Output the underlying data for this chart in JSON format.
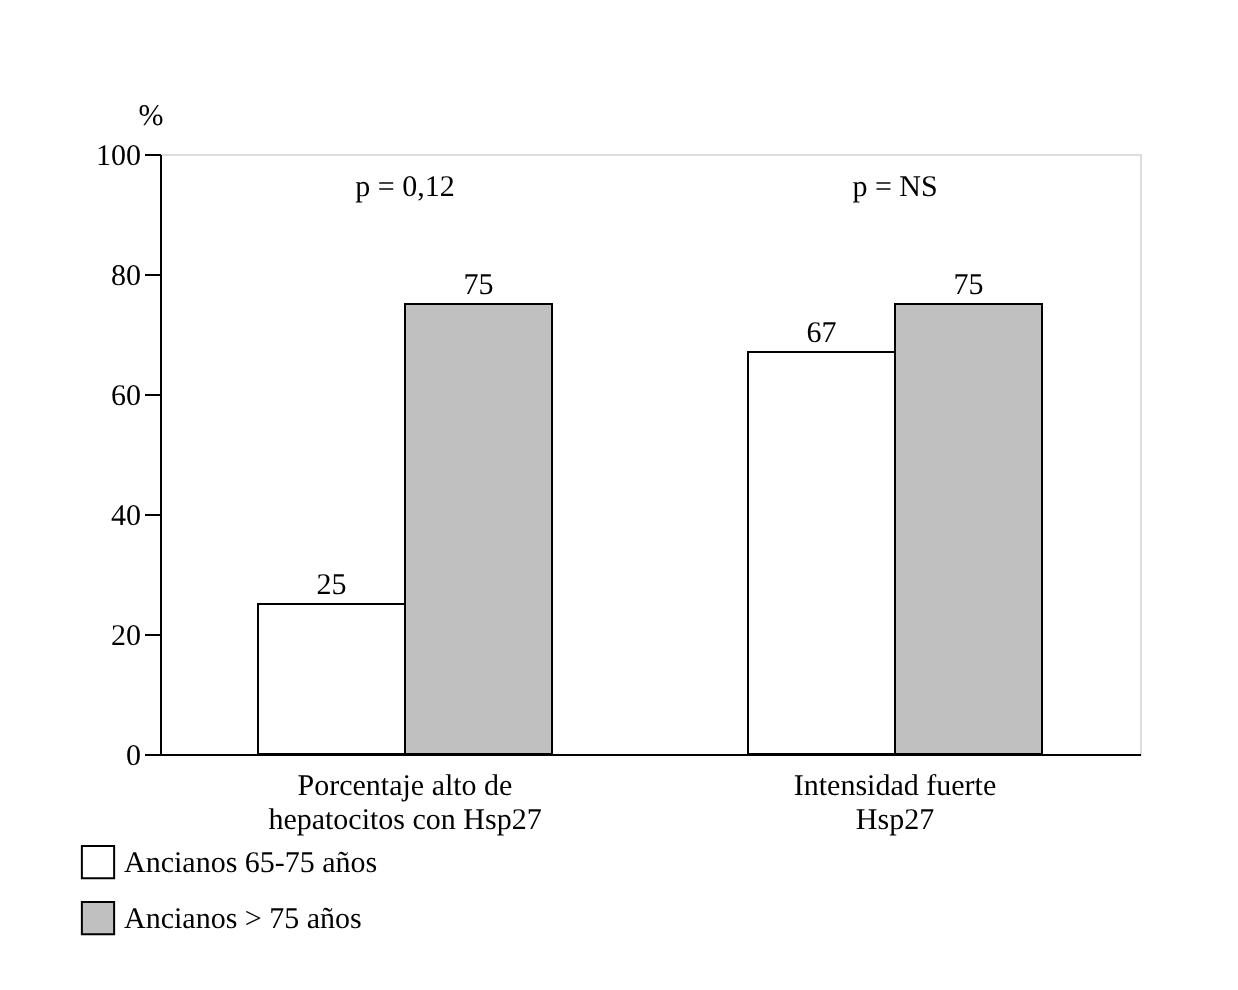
{
  "chart_data": {
    "type": "bar",
    "ylabel": "%",
    "categories": [
      "Porcentaje alto de\nhepatocitos con Hsp27",
      "Intensidad fuerte\nHsp27"
    ],
    "series": [
      {
        "name": "Ancianos 65-75 años",
        "color": "#ffffff",
        "values": [
          25,
          67
        ]
      },
      {
        "name": "Ancianos > 75 años",
        "color": "#c0c0c0",
        "values": [
          75,
          75
        ]
      }
    ],
    "ylim": [
      0,
      100
    ],
    "yticks": [
      0,
      20,
      40,
      60,
      80,
      100
    ],
    "grid": false,
    "legend": "bottom left",
    "data_labels": true,
    "annotations": [
      "p = 0,12",
      "p = NS"
    ]
  }
}
